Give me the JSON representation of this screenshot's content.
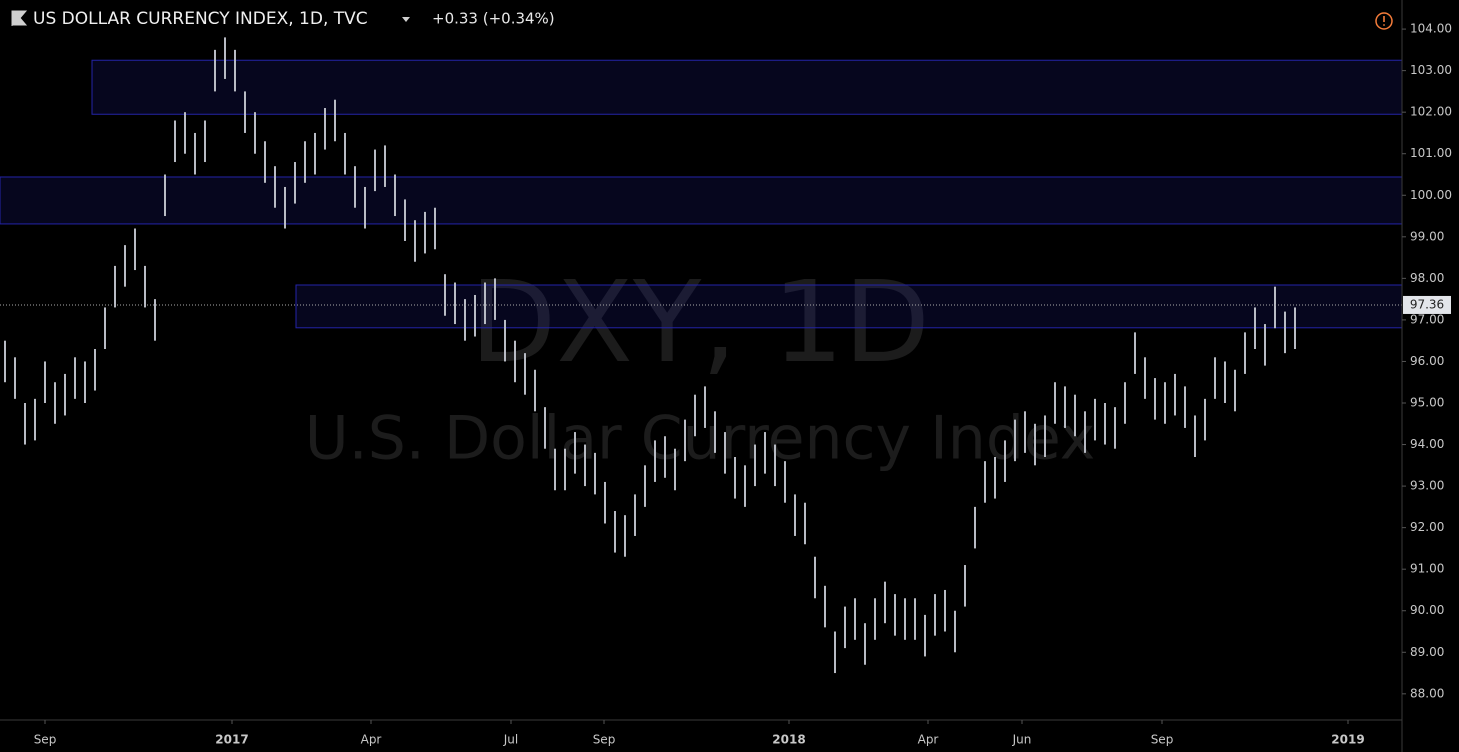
{
  "chart_data": {
    "type": "ohlc",
    "title": "US DOLLAR CURRENCY INDEX, 1D, TVC",
    "change": "+0.33 (+0.34%)",
    "watermark": "DXY, 1D",
    "watermark_subtitle": "U.S. Dollar Currency Index",
    "last_price": 97.36,
    "color": "#b8bbc4",
    "x": [
      0,
      1,
      2,
      3,
      4,
      5,
      6,
      7,
      8,
      9,
      10,
      11,
      12,
      13,
      14,
      15,
      16,
      17,
      18,
      19,
      20,
      21,
      22,
      23,
      24,
      25,
      26,
      27,
      28,
      29,
      30,
      31,
      32,
      33,
      34,
      35,
      36,
      37,
      38,
      39,
      40,
      41,
      42,
      43,
      44,
      45,
      46,
      47,
      48,
      49,
      50,
      51,
      52,
      53,
      54,
      55,
      56,
      57,
      58,
      59,
      60,
      61,
      62,
      63,
      64,
      65,
      66,
      67,
      68,
      69,
      70,
      71,
      72,
      73,
      74,
      75,
      76,
      77,
      78,
      79,
      80,
      81,
      82,
      83,
      84,
      85,
      86,
      87,
      88,
      89,
      90,
      91,
      92,
      93,
      94,
      95,
      96,
      97,
      98,
      99,
      100,
      101,
      102,
      103,
      104,
      105,
      106,
      107,
      108,
      109,
      110,
      111,
      112,
      113,
      114,
      115,
      116,
      117,
      118,
      119,
      120,
      121,
      122,
      123,
      124,
      125,
      126,
      127,
      128,
      129
    ],
    "high": [
      96.5,
      96.1,
      95.0,
      95.1,
      96.0,
      95.5,
      95.7,
      96.1,
      96.0,
      96.3,
      97.3,
      98.3,
      98.8,
      99.2,
      98.3,
      97.5,
      100.5,
      101.8,
      102.0,
      101.5,
      101.8,
      103.5,
      103.8,
      103.5,
      102.5,
      102.0,
      101.3,
      100.7,
      100.2,
      100.8,
      101.3,
      101.5,
      102.1,
      102.3,
      101.5,
      100.7,
      100.2,
      101.1,
      101.2,
      100.5,
      99.9,
      99.4,
      99.6,
      99.7,
      98.1,
      97.9,
      97.5,
      97.6,
      97.9,
      98.0,
      97.0,
      96.5,
      96.2,
      95.8,
      94.9,
      93.9,
      93.9,
      94.3,
      94.0,
      93.8,
      93.1,
      92.4,
      92.3,
      92.8,
      93.5,
      94.1,
      94.2,
      93.9,
      94.6,
      95.2,
      95.4,
      94.8,
      94.3,
      93.7,
      93.5,
      94.0,
      94.3,
      94.0,
      93.6,
      92.8,
      92.6,
      91.3,
      90.6,
      89.5,
      90.1,
      90.3,
      89.7,
      90.3,
      90.7,
      90.4,
      90.3,
      90.3,
      89.9,
      90.4,
      90.5,
      90.0,
      91.1,
      92.5,
      93.6,
      93.7,
      94.1,
      94.6,
      94.8,
      94.5,
      94.7,
      95.5,
      95.4,
      95.2,
      94.8,
      95.1,
      95.0,
      94.9,
      95.5,
      96.7,
      96.1,
      95.6,
      95.5,
      95.7,
      95.4,
      94.7,
      95.1,
      96.1,
      96.0,
      95.8,
      96.7,
      97.3,
      96.9,
      97.8,
      97.2,
      97.3
    ],
    "low": [
      95.5,
      95.1,
      94.0,
      94.1,
      95.0,
      94.5,
      94.7,
      95.1,
      95.0,
      95.3,
      96.3,
      97.3,
      97.8,
      98.2,
      97.3,
      96.5,
      99.5,
      100.8,
      101.0,
      100.5,
      100.8,
      102.5,
      102.8,
      102.5,
      101.5,
      101.0,
      100.3,
      99.7,
      99.2,
      99.8,
      100.3,
      100.5,
      101.1,
      101.3,
      100.5,
      99.7,
      99.2,
      100.1,
      100.2,
      99.5,
      98.9,
      98.4,
      98.6,
      98.7,
      97.1,
      96.9,
      96.5,
      96.6,
      96.9,
      97.0,
      96.0,
      95.5,
      95.2,
      94.8,
      93.9,
      92.9,
      92.9,
      93.3,
      93.0,
      92.8,
      92.1,
      91.4,
      91.3,
      91.8,
      92.5,
      93.1,
      93.2,
      92.9,
      93.6,
      94.2,
      94.4,
      93.8,
      93.3,
      92.7,
      92.5,
      93.0,
      93.3,
      93.0,
      92.6,
      91.8,
      91.6,
      90.3,
      89.6,
      88.5,
      89.1,
      89.3,
      88.7,
      89.3,
      89.7,
      89.4,
      89.3,
      89.3,
      88.9,
      89.4,
      89.5,
      89.0,
      90.1,
      91.5,
      92.6,
      92.7,
      93.1,
      93.6,
      93.8,
      93.5,
      93.7,
      94.5,
      94.4,
      94.2,
      93.8,
      94.1,
      94.0,
      93.9,
      94.5,
      95.7,
      95.1,
      94.6,
      94.5,
      94.7,
      94.4,
      93.7,
      94.1,
      95.1,
      95.0,
      94.8,
      95.7,
      96.3,
      95.9,
      96.8,
      96.2,
      96.3
    ],
    "zones": [
      {
        "x0": 8.7,
        "x1": 139.7,
        "y0": 101.95,
        "y1": 103.25
      },
      {
        "x0": -0.5,
        "x1": 139.7,
        "y0": 99.31,
        "y1": 100.44
      },
      {
        "x0": 29.1,
        "x1": 139.7,
        "y0": 96.81,
        "y1": 97.84
      }
    ],
    "zone_color": "#2424a8",
    "xlim": [
      -0.5,
      139.7
    ],
    "ylim": [
      87.37,
      104.7
    ],
    "xticks": [
      {
        "value": 4.0,
        "label": "Sep"
      },
      {
        "value": 22.7,
        "label": "2017"
      },
      {
        "value": 36.6,
        "label": "Apr"
      },
      {
        "value": 50.6,
        "label": "Jul"
      },
      {
        "value": 59.9,
        "label": "Sep"
      },
      {
        "value": 78.4,
        "label": "2018"
      },
      {
        "value": 92.3,
        "label": "Apr"
      },
      {
        "value": 101.7,
        "label": "Jun"
      },
      {
        "value": 115.7,
        "label": "Sep"
      },
      {
        "value": 134.3,
        "label": "2019"
      }
    ],
    "yticks": [
      {
        "value": 88,
        "label": "88.00"
      },
      {
        "value": 89,
        "label": "89.00"
      },
      {
        "value": 90,
        "label": "90.00"
      },
      {
        "value": 91,
        "label": "91.00"
      },
      {
        "value": 92,
        "label": "92.00"
      },
      {
        "value": 93,
        "label": "93.00"
      },
      {
        "value": 94,
        "label": "94.00"
      },
      {
        "value": 95,
        "label": "95.00"
      },
      {
        "value": 96,
        "label": "96.00"
      },
      {
        "value": 97,
        "label": "97.00"
      },
      {
        "value": 98,
        "label": "98.00"
      },
      {
        "value": 99,
        "label": "99.00"
      },
      {
        "value": 100,
        "label": "100.00"
      },
      {
        "value": 101,
        "label": "101.00"
      },
      {
        "value": 102,
        "label": "102.00"
      },
      {
        "value": 103,
        "label": "103.00"
      },
      {
        "value": 104,
        "label": "104.00"
      }
    ]
  }
}
